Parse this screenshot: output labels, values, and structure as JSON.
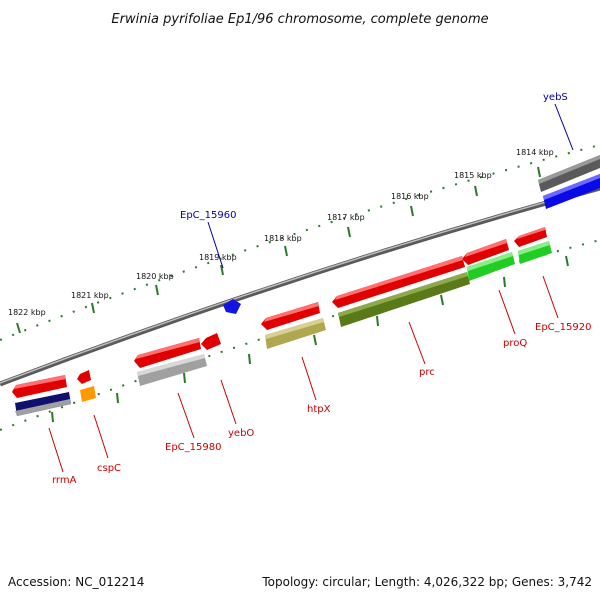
{
  "title": "Erwinia pyrifoliae Ep1/96 chromosome, complete genome",
  "footer": {
    "accession": "Accession: NC_012214",
    "topology": "Topology: circular; Length: 4,026,322 bp; Genes: 3,742"
  },
  "colors": {
    "backbone": "#6e6e6e",
    "tick_line": "#2a7a2a",
    "label_red": "#cc0000",
    "label_blue": "#0000aa"
  },
  "scale_ticks": [
    {
      "label": "1814 kbp"
    },
    {
      "label": "1815 kbp"
    },
    {
      "label": "1816 kbp"
    },
    {
      "label": "1817 kbp"
    },
    {
      "label": "1818 kbp"
    },
    {
      "label": "1819 kbp"
    },
    {
      "label": "1820 kbp"
    },
    {
      "label": "1821 kbp"
    },
    {
      "label": "1822 kbp"
    }
  ],
  "gene_labels": [
    {
      "name": "yebS",
      "color": "blue"
    },
    {
      "name": "EpC_15960",
      "color": "blue"
    },
    {
      "name": "EpC_15920",
      "color": "red"
    },
    {
      "name": "proQ",
      "color": "red"
    },
    {
      "name": "prc",
      "color": "red"
    },
    {
      "name": "htpX",
      "color": "red"
    },
    {
      "name": "yebO",
      "color": "red"
    },
    {
      "name": "EpC_15980",
      "color": "red"
    },
    {
      "name": "cspC",
      "color": "red"
    },
    {
      "name": "rrmA",
      "color": "red"
    }
  ]
}
